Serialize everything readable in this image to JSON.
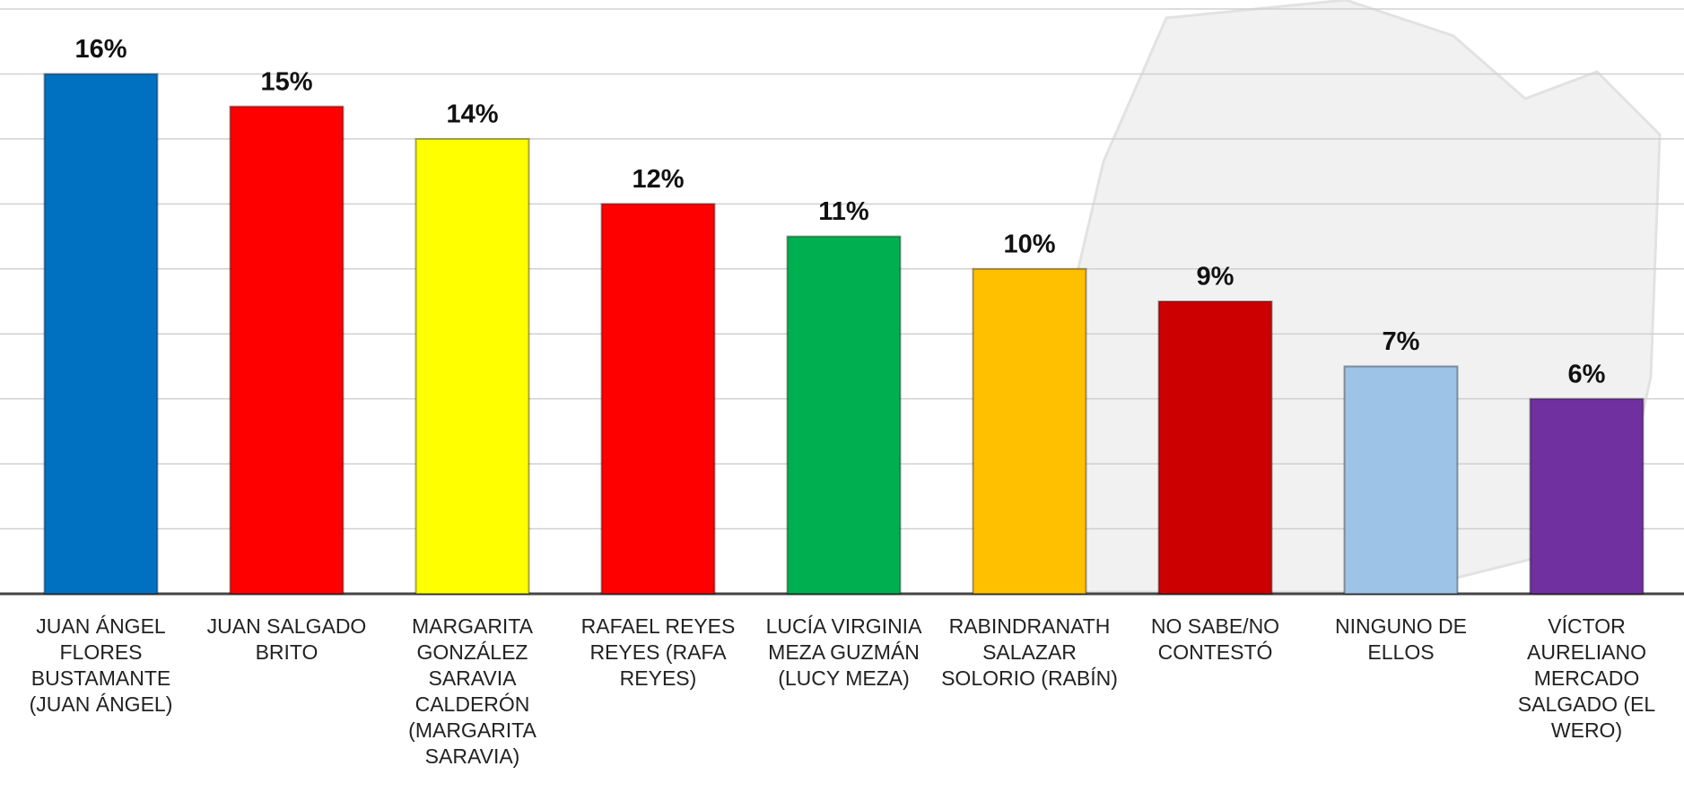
{
  "chart_data": {
    "type": "bar",
    "categories": [
      "JUAN ÁNGEL FLORES BUSTAMANTE (JUAN ÁNGEL)",
      "JUAN SALGADO BRITO",
      "MARGARITA GONZÁLEZ SARAVIA CALDERÓN (MARGARITA SARAVIA)",
      "RAFAEL REYES REYES (RAFA REYES)",
      "LUCÍA VIRGINIA MEZA GUZMÁN (LUCY MEZA)",
      "RABINDRANATH SALAZAR SOLORIO (RABÍN)",
      "NO SABE/NO CONTESTÓ",
      "NINGUNO DE ELLOS",
      "VÍCTOR AURELIANO MERCADO SALGADO (EL WERO)"
    ],
    "values": [
      16,
      15,
      14,
      12,
      11,
      10,
      9,
      7,
      6
    ],
    "value_labels": [
      "16%",
      "15%",
      "14%",
      "12%",
      "11%",
      "10%",
      "9%",
      "7%",
      "6%"
    ],
    "colors": [
      "#0070c0",
      "#ff0000",
      "#ffff00",
      "#ff0000",
      "#00b050",
      "#ffc000",
      "#cc0000",
      "#9dc3e6",
      "#7030a0"
    ],
    "ylim": [
      0,
      18
    ],
    "yticks": [
      0,
      2,
      4,
      6,
      8,
      10,
      12,
      14,
      16,
      18
    ],
    "grid": true
  }
}
